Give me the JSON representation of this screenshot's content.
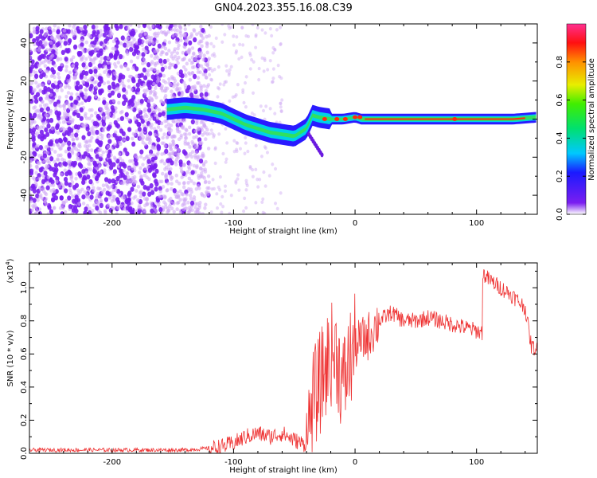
{
  "title": "GN04.2023.355.16.08.C39",
  "colors": {
    "snr_line": "#ee3333",
    "scatter_faint": "#cfa8f5",
    "scatter_dark": "#7a1ef0"
  },
  "chart_data": [
    {
      "type": "heatmap",
      "xlabel": "Height of straight line (km)",
      "ylabel": "Frequency (Hz)",
      "xlim": [
        -268,
        150
      ],
      "ylim": [
        -50,
        50
      ],
      "xticks": [
        -200,
        -100,
        0,
        100
      ],
      "xtick_labels": [
        "-200",
        "-100",
        "0",
        "100"
      ],
      "yticks": [
        -40,
        -20,
        0,
        20,
        40
      ],
      "ytick_labels": [
        "-40",
        "-20",
        "0",
        "20",
        "40"
      ],
      "colorbar": {
        "label": "Normalized spectral amplitude",
        "range": [
          0,
          1
        ],
        "ticks": [
          0,
          0.2,
          0.4,
          0.6,
          0.8
        ],
        "tick_labels": [
          "0.0",
          "0.2",
          "0.4",
          "0.6",
          "0.8"
        ],
        "colormap": "rainbow"
      },
      "ridge": {
        "x": [
          -155,
          -140,
          -125,
          -110,
          -100,
          -90,
          -80,
          -70,
          -60,
          -50,
          -40,
          -35,
          -30,
          -20,
          -10,
          0,
          5,
          20,
          50,
          80,
          110,
          130,
          150
        ],
        "y": [
          5,
          6,
          5,
          3,
          0,
          -3,
          -5,
          -7,
          -8,
          -9,
          -5,
          2,
          1,
          0,
          0,
          1,
          0,
          0,
          0,
          0,
          0,
          0,
          1
        ]
      }
    },
    {
      "type": "line",
      "xlabel": "Height of straight line (km)",
      "ylabel": "SNR (10 * v/v)",
      "ylabel_multiplier": "(x10^4)",
      "xlim": [
        -268,
        150
      ],
      "ylim": [
        0,
        1.15
      ],
      "xticks": [
        -200,
        -100,
        0,
        100
      ],
      "xtick_labels": [
        "-200",
        "-100",
        "0",
        "100"
      ],
      "yticks": [
        0,
        0.2,
        0.4,
        0.6,
        0.8,
        1.0
      ],
      "ytick_labels": [
        "0.0",
        "0.2",
        "0.4",
        "0.6",
        "0.8",
        "1.0"
      ],
      "series": [
        {
          "x": [
            -268,
            -240,
            -200,
            -160,
            -140,
            -120,
            -110,
            -100,
            -90,
            -80,
            -70,
            -60,
            -50,
            -40,
            -35,
            -30,
            -25,
            -20,
            -15,
            -10,
            -5,
            0,
            10,
            20,
            30,
            40,
            50,
            60,
            70,
            80,
            90,
            100,
            104,
            106,
            110,
            120,
            130,
            140,
            145,
            150
          ],
          "y": [
            0.02,
            0.02,
            0.02,
            0.02,
            0.02,
            0.03,
            0.04,
            0.06,
            0.1,
            0.12,
            0.1,
            0.12,
            0.08,
            0.05,
            0.3,
            0.4,
            0.5,
            0.6,
            0.6,
            0.4,
            0.55,
            0.65,
            0.7,
            0.8,
            0.85,
            0.8,
            0.8,
            0.82,
            0.8,
            0.78,
            0.76,
            0.74,
            0.73,
            1.08,
            1.05,
            1.0,
            0.95,
            0.88,
            0.65,
            0.62
          ]
        }
      ]
    }
  ]
}
